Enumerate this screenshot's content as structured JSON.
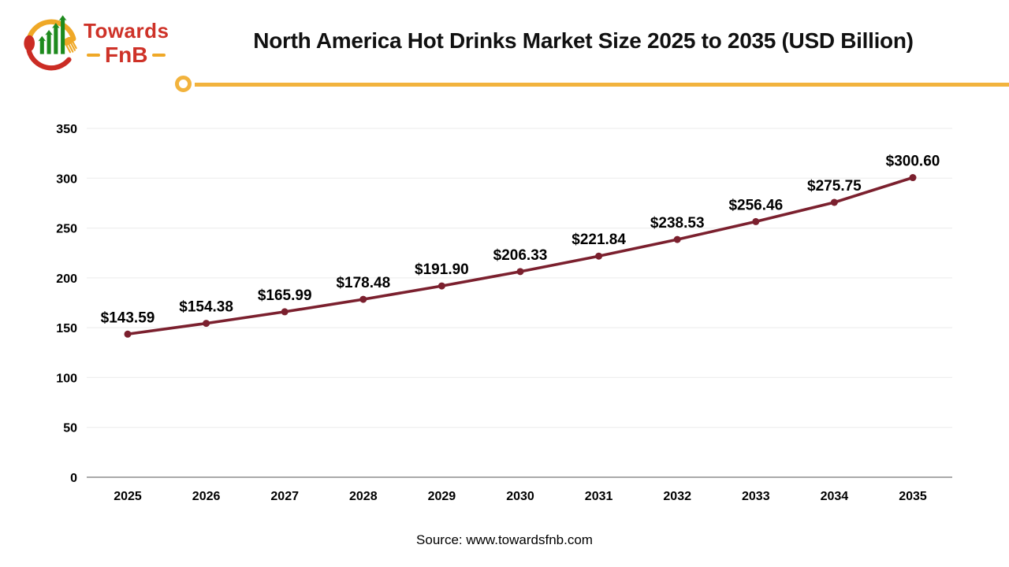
{
  "logo": {
    "name1": "Towards",
    "name2": "FnB",
    "red": "#ce3228",
    "yellow": "#efa827",
    "green": "#1d8a1d"
  },
  "header": {
    "title": "North America Hot Drinks Market Size 2025 to 2035 (USD Billion)",
    "underline_color": "#f2b33d"
  },
  "chart_data": {
    "type": "line",
    "title": "North America Hot Drinks Market Size 2025 to 2035 (USD Billion)",
    "categories": [
      "2025",
      "2026",
      "2027",
      "2028",
      "2029",
      "2030",
      "2031",
      "2032",
      "2033",
      "2034",
      "2035"
    ],
    "values": [
      143.59,
      154.38,
      165.99,
      178.48,
      191.9,
      206.33,
      221.84,
      238.53,
      256.46,
      275.75,
      300.6
    ],
    "point_labels": [
      "$143.59",
      "$154.38",
      "$165.99",
      "$178.48",
      "$191.90",
      "$206.33",
      "$221.84",
      "$238.53",
      "$256.46",
      "$275.75",
      "$300.60"
    ],
    "xlabel": "",
    "ylabel": "",
    "ylim": [
      0,
      350
    ],
    "yticks": [
      0,
      50,
      100,
      150,
      200,
      250,
      300,
      350
    ],
    "grid": "horizontal",
    "legend": "none",
    "line_color": "#7b202e",
    "marker": "circle",
    "units": "USD Billion"
  },
  "footer": {
    "source": "Source: www.towardsfnb.com"
  }
}
